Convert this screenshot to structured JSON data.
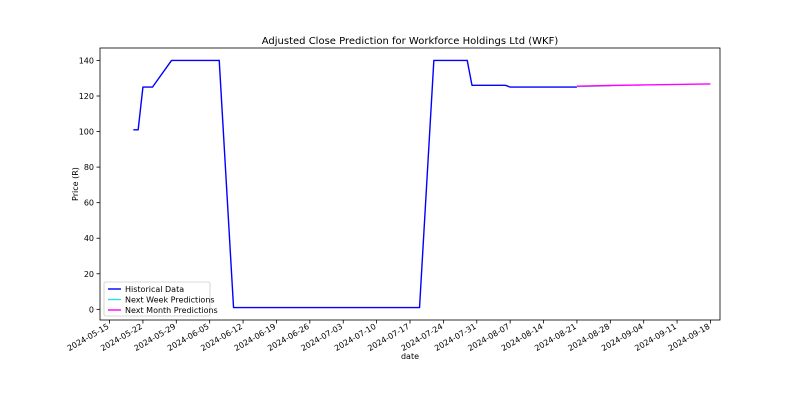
{
  "chart_data": {
    "type": "line",
    "title": "Adjusted Close Prediction for Workforce Holdings Ltd (WKF)",
    "xlabel": "date",
    "ylabel": "Price (R)",
    "x_type": "date",
    "xlim": [
      "2024-05-13",
      "2024-09-20"
    ],
    "ylim": [
      -6,
      147
    ],
    "x_ticks": [
      "2024-05-15",
      "2024-05-22",
      "2024-05-29",
      "2024-06-05",
      "2024-06-12",
      "2024-06-19",
      "2024-06-26",
      "2024-07-03",
      "2024-07-10",
      "2024-07-17",
      "2024-07-24",
      "2024-07-31",
      "2024-08-07",
      "2024-08-14",
      "2024-08-21",
      "2024-08-28",
      "2024-09-04",
      "2024-09-11",
      "2024-09-18"
    ],
    "y_ticks": [
      0,
      20,
      40,
      60,
      80,
      100,
      120,
      140
    ],
    "grid": false,
    "legend_position": "lower-left",
    "series": [
      {
        "name": "Historical Data",
        "color": "#0000ff",
        "points": [
          [
            "2024-05-20",
            101
          ],
          [
            "2024-05-21",
            101
          ],
          [
            "2024-05-22",
            125
          ],
          [
            "2024-05-24",
            125
          ],
          [
            "2024-05-28",
            140
          ],
          [
            "2024-06-07",
            140
          ],
          [
            "2024-06-10",
            1
          ],
          [
            "2024-07-19",
            1
          ],
          [
            "2024-07-22",
            140
          ],
          [
            "2024-07-29",
            140
          ],
          [
            "2024-07-30",
            126
          ],
          [
            "2024-08-06",
            126
          ],
          [
            "2024-08-07",
            125
          ],
          [
            "2024-08-21",
            125
          ]
        ]
      },
      {
        "name": "Next Week Predictions",
        "color": "#33dddd",
        "points": [
          [
            "2024-08-21",
            125.3
          ],
          [
            "2024-08-28",
            125.8
          ]
        ]
      },
      {
        "name": "Next Month Predictions",
        "color": "#ff00ff",
        "points": [
          [
            "2024-08-21",
            125.5
          ],
          [
            "2024-08-28",
            125.9
          ],
          [
            "2024-09-04",
            126.2
          ],
          [
            "2024-09-11",
            126.5
          ],
          [
            "2024-09-18",
            126.8
          ]
        ]
      }
    ]
  }
}
